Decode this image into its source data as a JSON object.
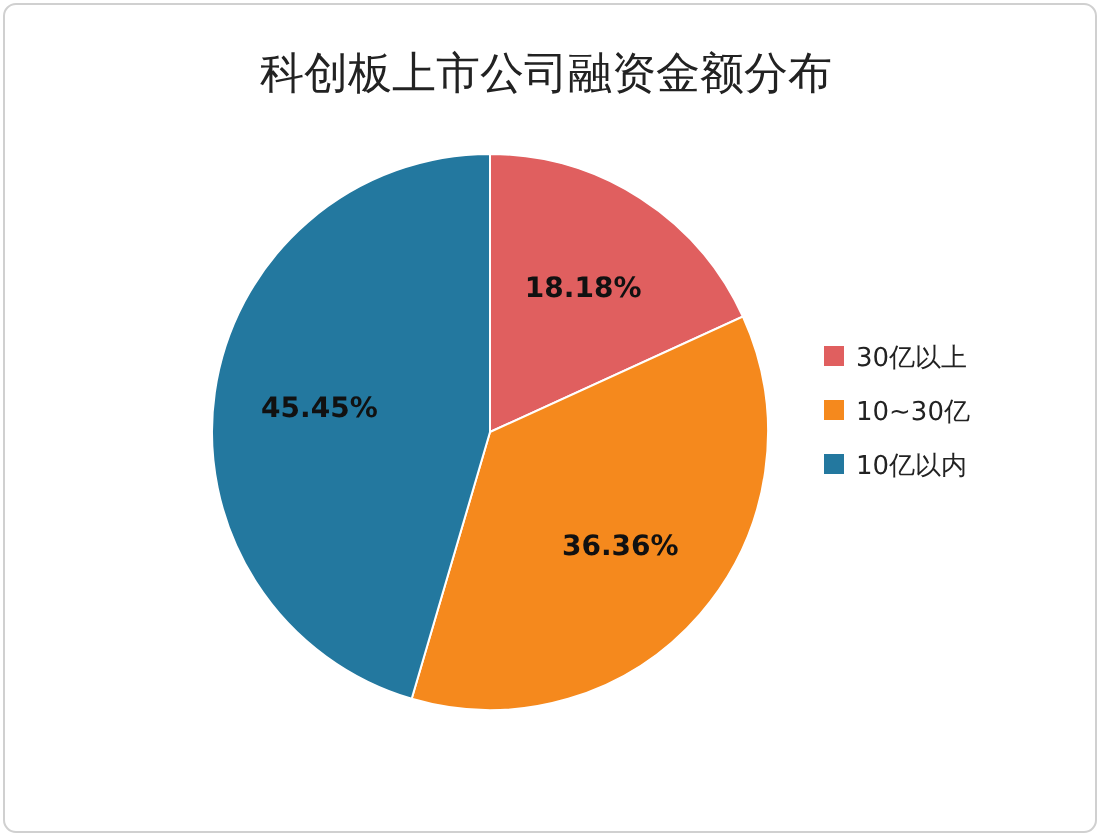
{
  "chart_data": {
    "type": "pie",
    "title": "科创板上市公司融资金额分布",
    "categories": [
      "30亿以上",
      "10~30亿",
      "10亿以内"
    ],
    "values": [
      18.18,
      36.36,
      45.45
    ],
    "colors": [
      "#e05f5f",
      "#f5891d",
      "#23789f"
    ],
    "value_labels": [
      "18.18%",
      "36.36%",
      "45.45%"
    ],
    "legend": "right"
  }
}
